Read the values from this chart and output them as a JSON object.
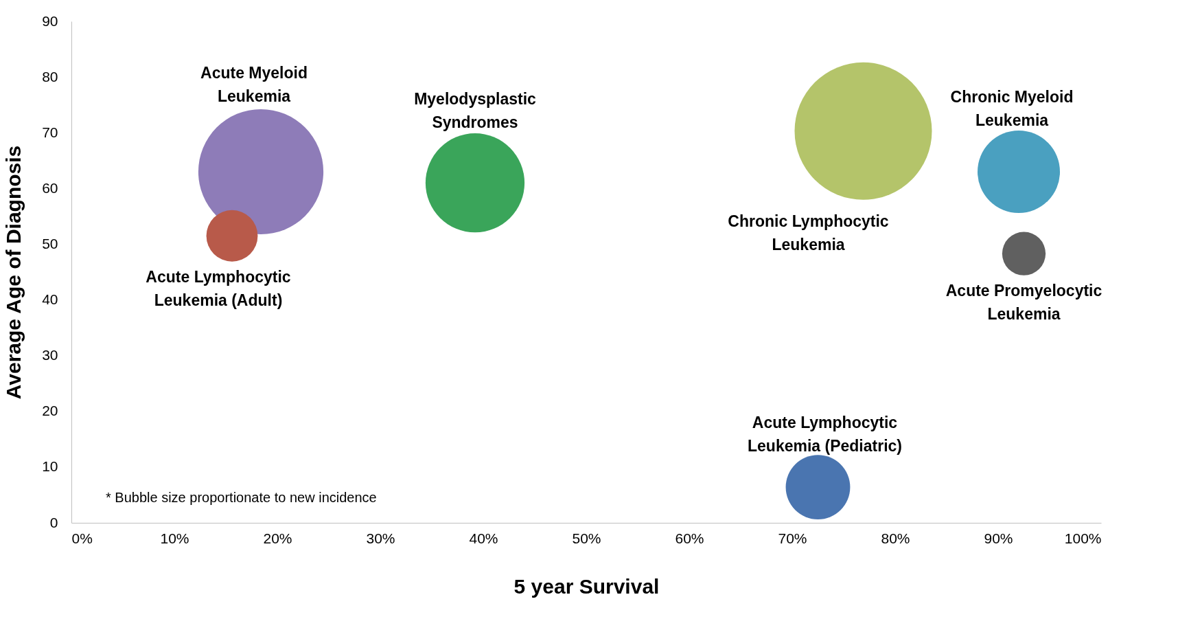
{
  "chart_data": {
    "type": "bubble",
    "xlabel": "5 year Survival",
    "ylabel": "Average Age of Diagnosis",
    "xlim": [
      0,
      100
    ],
    "ylim": [
      0,
      90
    ],
    "xticks": [
      {
        "value": 0,
        "label": "0%"
      },
      {
        "value": 10,
        "label": "10%"
      },
      {
        "value": 20,
        "label": "20%"
      },
      {
        "value": 30,
        "label": "30%"
      },
      {
        "value": 40,
        "label": "40%"
      },
      {
        "value": 50,
        "label": "50%"
      },
      {
        "value": 60,
        "label": "60%"
      },
      {
        "value": 70,
        "label": "70%"
      },
      {
        "value": 80,
        "label": "80%"
      },
      {
        "value": 90,
        "label": "90%"
      },
      {
        "value": 100,
        "label": "100%"
      }
    ],
    "yticks": [
      0,
      10,
      20,
      30,
      40,
      50,
      60,
      70,
      80,
      90
    ],
    "grid": false,
    "annotations": [
      "* Bubble size proportionate to new incidence"
    ],
    "series": [
      {
        "name": "Acute Myeloid Leukemia",
        "color": "#8e7cb8",
        "x": [
          18.4
        ],
        "values": [
          63
        ],
        "sizes": [
          0.83
        ]
      },
      {
        "name": "Acute Lymphocytic Leukemia (Adult)",
        "color": "#b85a4a",
        "x": [
          15.6
        ],
        "values": [
          51.5
        ],
        "sizes": [
          0.14
        ]
      },
      {
        "name": "Myelodysplastic Syndromes",
        "color": "#3aa55a",
        "x": [
          39.2
        ],
        "values": [
          61
        ],
        "sizes": [
          0.52
        ]
      },
      {
        "name": "Chronic Lymphocytic Leukemia",
        "color": "#b4c46a",
        "x": [
          76.9
        ],
        "values": [
          70.3
        ],
        "sizes": [
          1
        ]
      },
      {
        "name": "Chronic Myeloid Leukemia",
        "color": "#4aa0c0",
        "x": [
          92
        ],
        "values": [
          63
        ],
        "sizes": [
          0.36
        ]
      },
      {
        "name": "Acute Promyelocytic Leukemia",
        "color": "#606060",
        "x": [
          92.5
        ],
        "values": [
          48.3
        ],
        "sizes": [
          0.1
        ]
      },
      {
        "name": "Acute Lymphocytic Leukemia (Pediatric)",
        "color": "#4a75b0",
        "x": [
          72.5
        ],
        "values": [
          6.4
        ],
        "sizes": [
          0.22
        ]
      }
    ]
  }
}
